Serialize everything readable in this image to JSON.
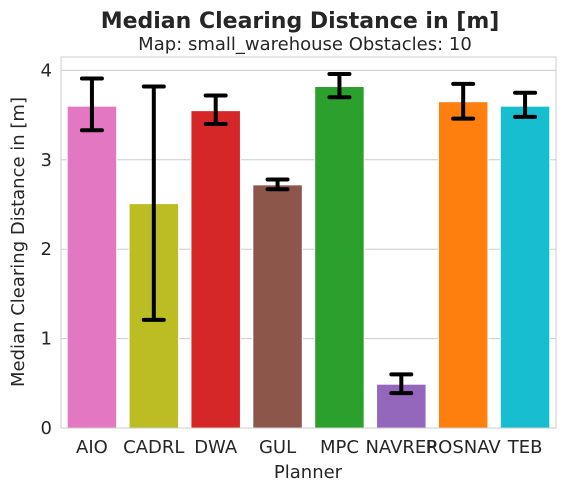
{
  "chart_data": {
    "type": "bar",
    "title": "Median Clearing Distance in [m]",
    "subtitle": "Map: small_warehouse Obstacles: 10",
    "xlabel": "Planner",
    "ylabel": "Median Clearing Distance in [m]",
    "ylim": [
      0,
      4.15
    ],
    "yticks": [
      "0",
      "1",
      "2",
      "3",
      "4"
    ],
    "grid": "horizontal",
    "categories": [
      "AIO",
      "CADRL",
      "DWA",
      "GUL",
      "MPC",
      "NAVREP",
      "ROSNAV",
      "TEB"
    ],
    "values": [
      3.6,
      2.51,
      3.55,
      2.72,
      3.82,
      0.49,
      3.65,
      3.6
    ],
    "error_low": [
      3.33,
      1.21,
      3.4,
      2.67,
      3.7,
      0.39,
      3.46,
      3.48
    ],
    "error_high": [
      3.91,
      3.82,
      3.72,
      2.78,
      3.96,
      0.6,
      3.85,
      3.75
    ],
    "colors": [
      "#e377c2",
      "#bcbd22",
      "#d62728",
      "#8c564b",
      "#2ca02c",
      "#9467bd",
      "#ff7f0e",
      "#17becf"
    ]
  }
}
